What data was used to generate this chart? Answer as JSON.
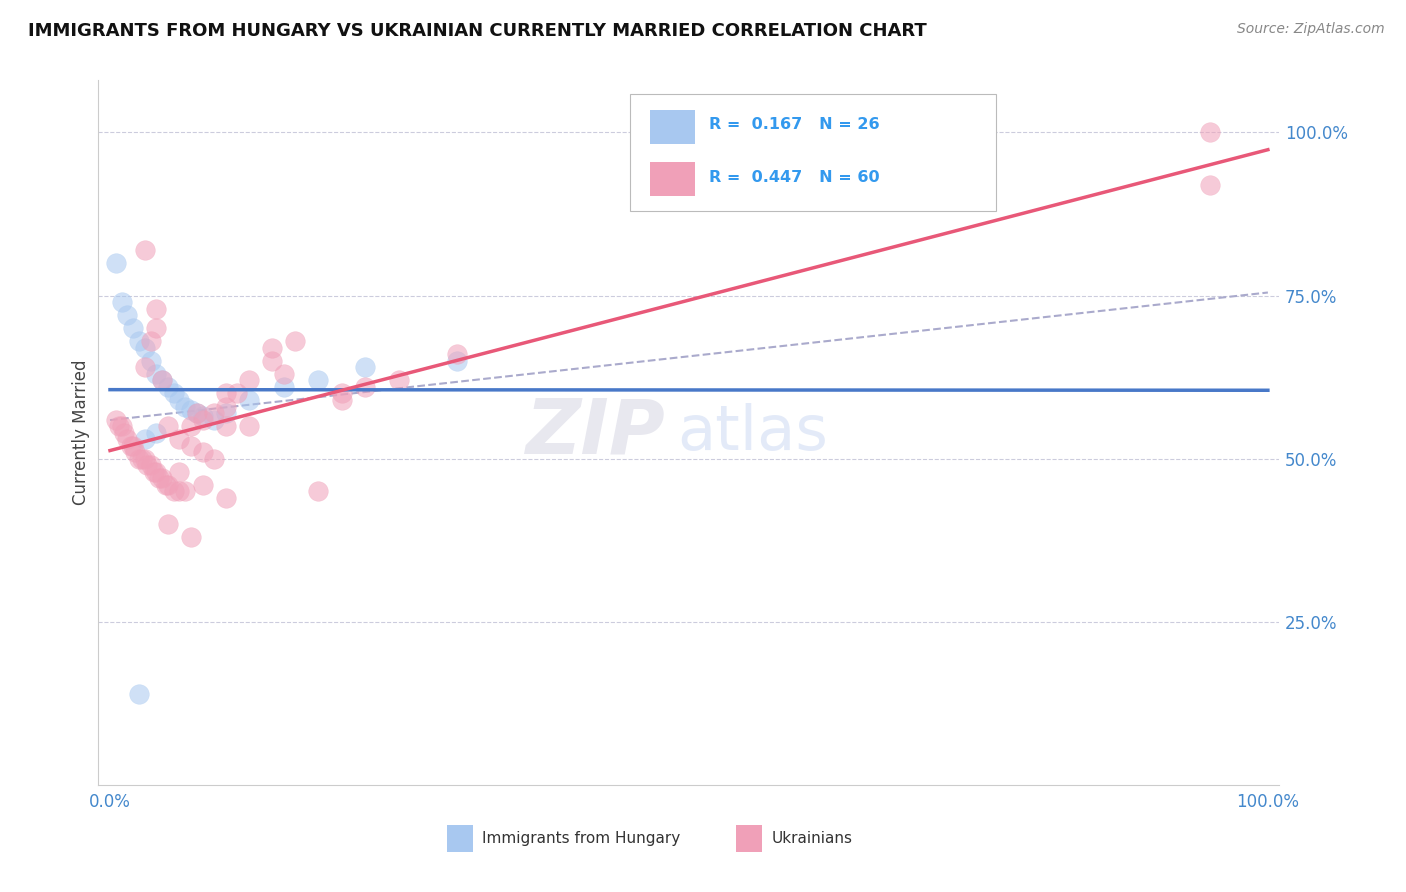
{
  "title": "IMMIGRANTS FROM HUNGARY VS UKRAINIAN CURRENTLY MARRIED CORRELATION CHART",
  "source": "Source: ZipAtlas.com",
  "ylabel": "Currently Married",
  "blue_color": "#A8C8F0",
  "pink_color": "#F0A0B8",
  "blue_line_color": "#4878C8",
  "pink_line_color": "#E85878",
  "dashed_line_color": "#AAAACC",
  "grid_color": "#CCCCDD",
  "blue_r": 0.167,
  "blue_n": 26,
  "pink_r": 0.447,
  "pink_n": 60,
  "blue_points_x": [
    0.5,
    1.0,
    1.5,
    2.0,
    2.5,
    3.0,
    3.5,
    4.0,
    4.5,
    5.0,
    5.5,
    6.0,
    6.5,
    7.0,
    7.5,
    8.0,
    9.0,
    10.0,
    12.0,
    15.0,
    18.0,
    22.0,
    3.0,
    4.0,
    30.0,
    2.5
  ],
  "blue_points_y": [
    80.0,
    74.0,
    72.0,
    70.0,
    68.0,
    67.0,
    65.0,
    63.0,
    62.0,
    61.0,
    60.0,
    59.0,
    58.0,
    57.5,
    57.0,
    56.5,
    56.0,
    57.0,
    59.0,
    61.0,
    62.0,
    64.0,
    53.0,
    54.0,
    65.0,
    14.0
  ],
  "pink_points_x": [
    0.5,
    0.8,
    1.0,
    1.2,
    1.5,
    1.8,
    2.0,
    2.2,
    2.5,
    2.8,
    3.0,
    3.2,
    3.5,
    3.8,
    4.0,
    4.2,
    4.5,
    4.8,
    5.0,
    5.5,
    6.0,
    6.5,
    7.0,
    7.5,
    8.0,
    9.0,
    10.0,
    11.0,
    12.0,
    14.0,
    16.0,
    18.0,
    20.0,
    22.0,
    25.0,
    3.5,
    4.0,
    5.0,
    6.0,
    7.0,
    8.0,
    9.0,
    10.0,
    12.0,
    3.0,
    4.5,
    6.0,
    8.0,
    10.0,
    15.0,
    20.0,
    5.0,
    7.0,
    10.0,
    3.0,
    4.0,
    14.0,
    30.0,
    95.0,
    95.0
  ],
  "pink_points_y": [
    56.0,
    55.0,
    55.0,
    54.0,
    53.0,
    52.0,
    52.0,
    51.0,
    50.0,
    50.0,
    50.0,
    49.0,
    49.0,
    48.0,
    48.0,
    47.0,
    47.0,
    46.0,
    46.0,
    45.0,
    45.0,
    45.0,
    55.0,
    57.0,
    56.0,
    57.0,
    58.0,
    60.0,
    62.0,
    65.0,
    68.0,
    45.0,
    60.0,
    61.0,
    62.0,
    68.0,
    70.0,
    55.0,
    53.0,
    52.0,
    51.0,
    50.0,
    60.0,
    55.0,
    64.0,
    62.0,
    48.0,
    46.0,
    55.0,
    63.0,
    59.0,
    40.0,
    38.0,
    44.0,
    82.0,
    73.0,
    67.0,
    66.0,
    100.0,
    92.0
  ],
  "xlim": [
    -1,
    101
  ],
  "ylim": [
    0,
    108
  ],
  "yticks": [
    25,
    50,
    75,
    100
  ],
  "ytick_labels": [
    "25.0%",
    "50.0%",
    "75.0%",
    "100.0%"
  ],
  "xtick_labels": [
    "0.0%",
    "100.0%"
  ],
  "figwidth": 14.06,
  "figheight": 8.92,
  "dpi": 100,
  "watermark_zip": "ZIP",
  "watermark_atlas": "atlas"
}
